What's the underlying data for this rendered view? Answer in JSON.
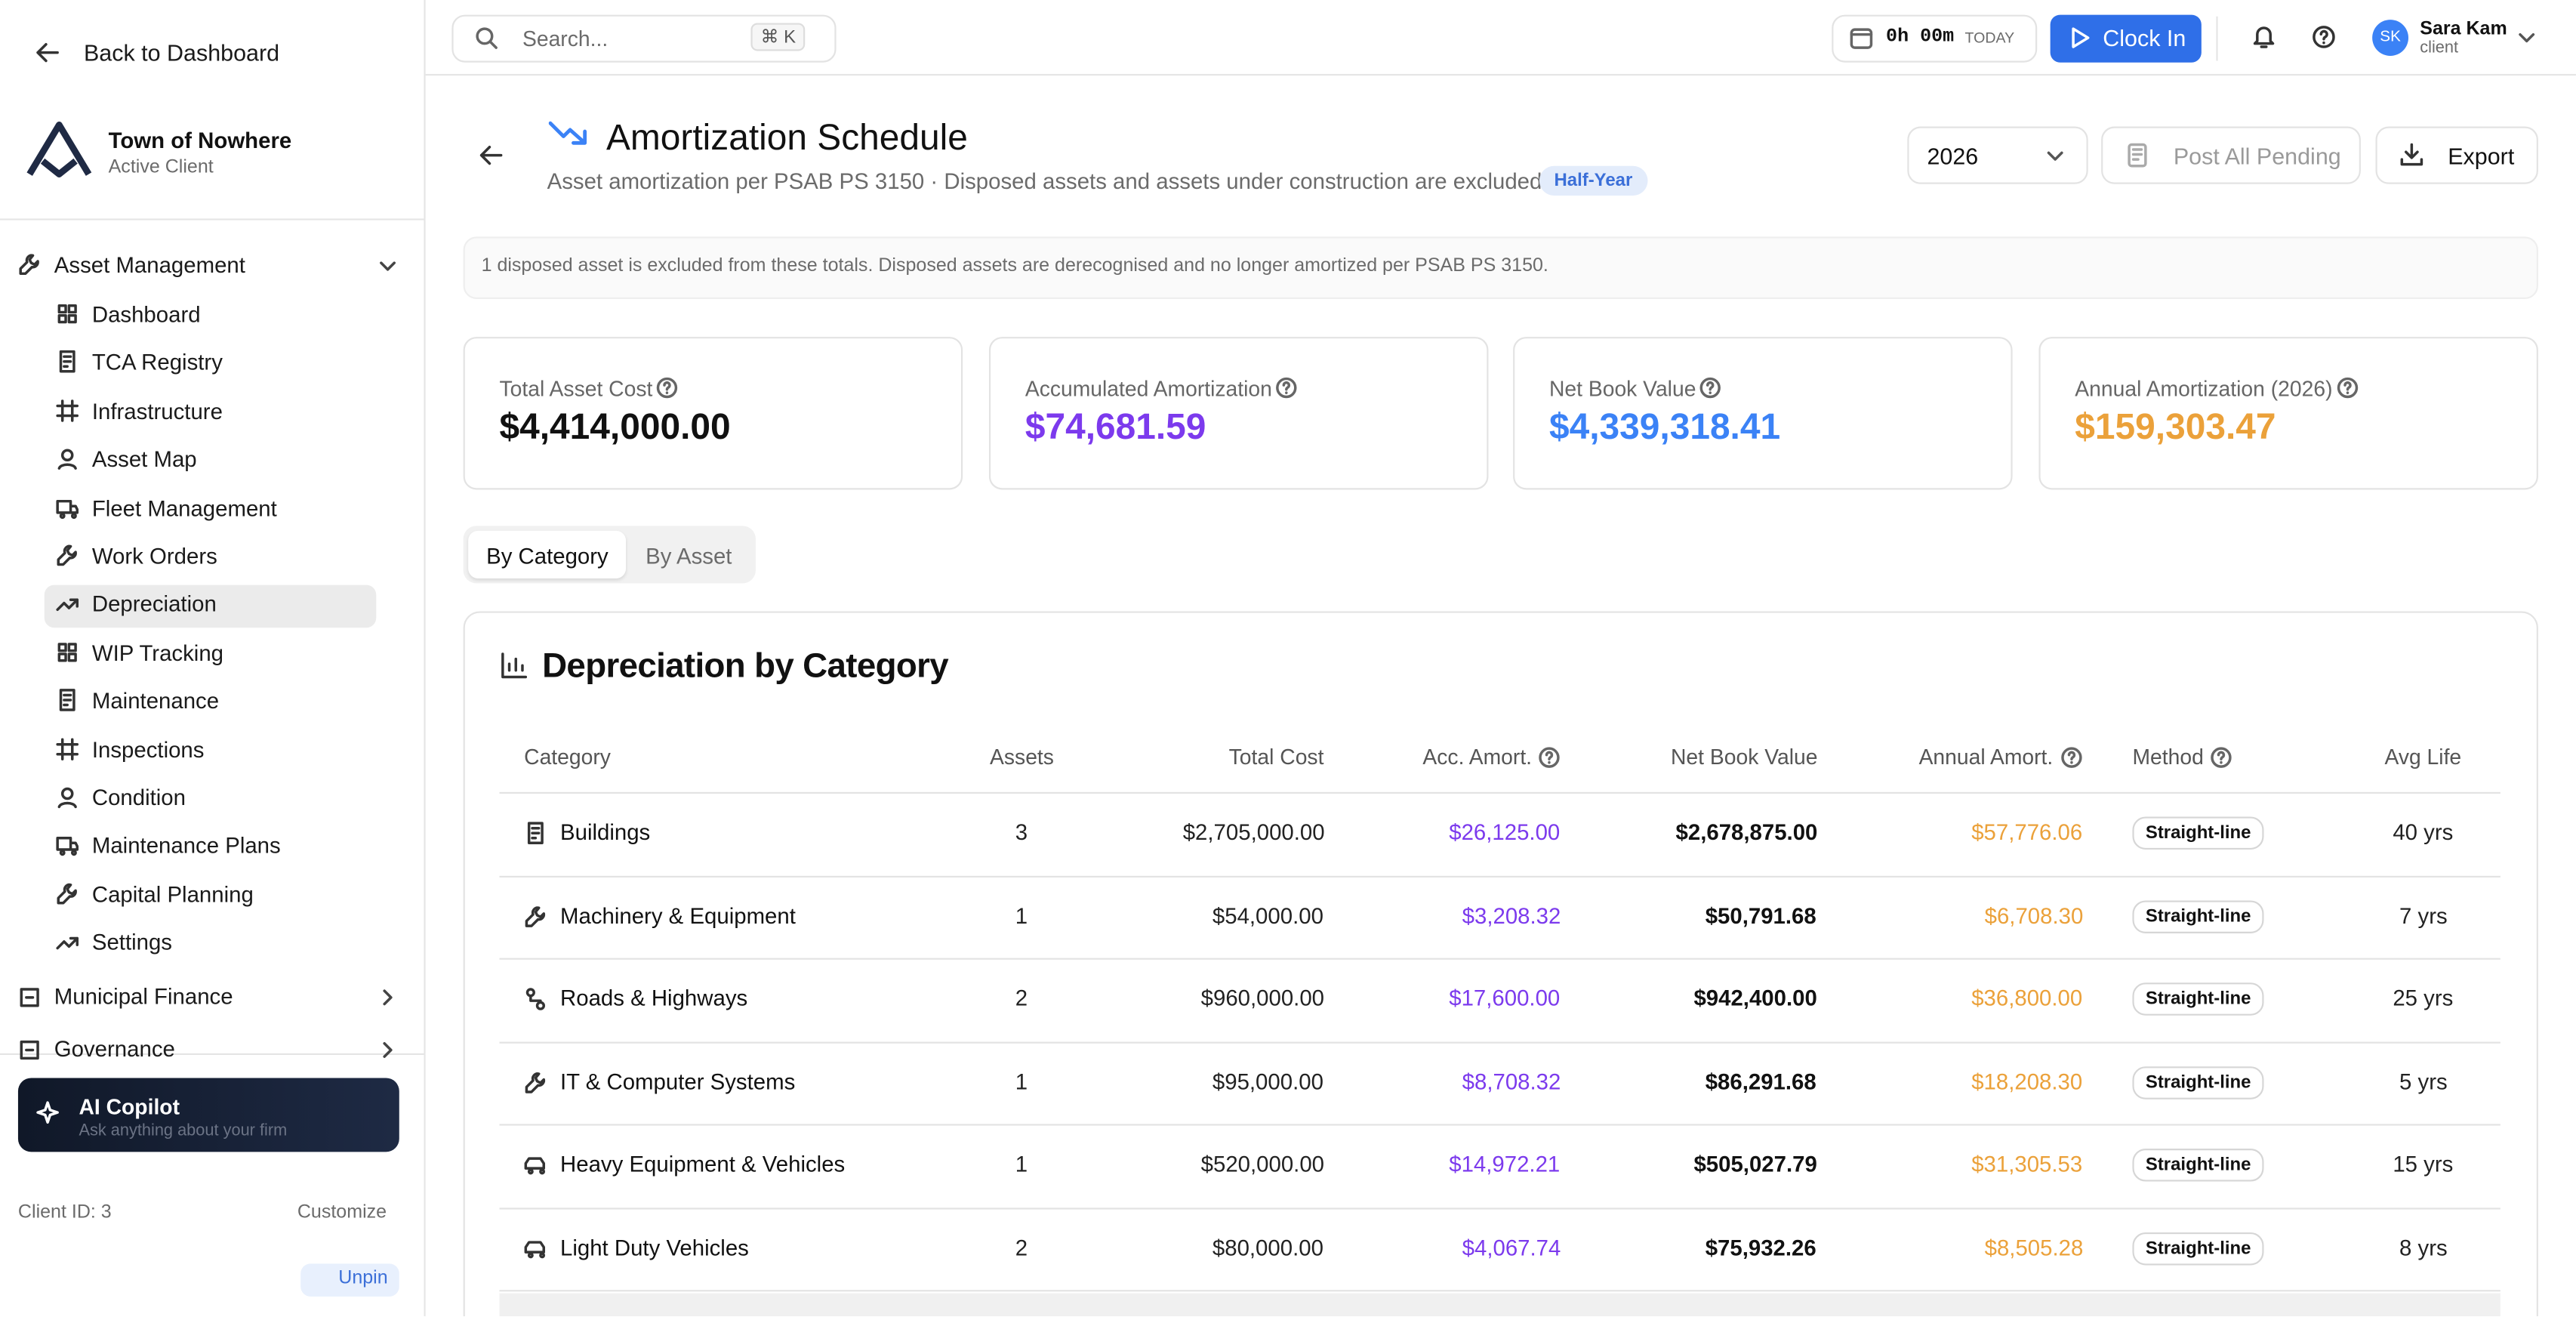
{
  "sidebar": {
    "back": "Back to Dashboard",
    "org": {
      "name": "Town of Nowhere",
      "status": "Active Client"
    },
    "sections": [
      {
        "label": "Asset Management",
        "items": [
          "Dashboard",
          "TCA Registry",
          "Infrastructure",
          "Asset Map",
          "Fleet Management",
          "Work Orders",
          "Depreciation",
          "WIP Tracking",
          "Maintenance",
          "Inspections",
          "Condition",
          "Maintenance Plans",
          "Capital Planning",
          "Settings"
        ]
      },
      {
        "label": "Municipal Finance"
      },
      {
        "label": "Governance"
      }
    ],
    "copilot": {
      "title": "AI Copilot",
      "subtitle": "Ask anything about your firm"
    },
    "client_id": "Client ID: 3",
    "customize": "Customize",
    "unpin": "Unpin"
  },
  "topbar": {
    "search": "Search...",
    "shortcut": "⌘ K",
    "timer": "0h 00m",
    "timer_label": "TODAY",
    "clock_in": "Clock In",
    "user": {
      "initials": "SK",
      "name": "Sara Kam",
      "role": "client"
    }
  },
  "header": {
    "title": "Amortization Schedule",
    "subtitle": "Asset amortization per PSAB PS 3150 · Disposed assets and assets under construction are excluded.",
    "badge": "Half-Year",
    "year": "2026",
    "post": "Post All Pending",
    "export": "Export"
  },
  "notice": "1 disposed asset is excluded from these totals. Disposed assets are derecognised and no longer amortized per PSAB PS 3150.",
  "kpis": [
    {
      "label": "Total Asset Cost",
      "value": "$4,414,000.00"
    },
    {
      "label": "Accumulated Amortization",
      "value": "$74,681.59"
    },
    {
      "label": "Net Book Value",
      "value": "$4,339,318.41"
    },
    {
      "label": "Annual Amortization (2026)",
      "value": "$159,303.47"
    }
  ],
  "tabs": [
    "By Category",
    "By Asset"
  ],
  "table": {
    "title": "Depreciation by Category",
    "columns": [
      "Category",
      "Assets",
      "Total Cost",
      "Acc. Amort.",
      "Net Book Value",
      "Annual Amort.",
      "Method",
      "Avg Life"
    ],
    "rows": [
      [
        "Buildings",
        "3",
        "$2,705,000.00",
        "$26,125.00",
        "$2,678,875.00",
        "$57,776.06",
        "Straight-line",
        "40 yrs"
      ],
      [
        "Machinery & Equipment",
        "1",
        "$54,000.00",
        "$3,208.32",
        "$50,791.68",
        "$6,708.30",
        "Straight-line",
        "7 yrs"
      ],
      [
        "Roads & Highways",
        "2",
        "$960,000.00",
        "$17,600.00",
        "$942,400.00",
        "$36,800.00",
        "Straight-line",
        "25 yrs"
      ],
      [
        "IT & Computer Systems",
        "1",
        "$95,000.00",
        "$8,708.32",
        "$86,291.68",
        "$18,208.30",
        "Straight-line",
        "5 yrs"
      ],
      [
        "Heavy Equipment & Vehicles",
        "1",
        "$520,000.00",
        "$14,972.21",
        "$505,027.79",
        "$31,305.53",
        "Straight-line",
        "15 yrs"
      ],
      [
        "Light Duty Vehicles",
        "2",
        "$80,000.00",
        "$4,067.74",
        "$75,932.26",
        "$8,505.28",
        "Straight-line",
        "8 yrs"
      ]
    ]
  }
}
